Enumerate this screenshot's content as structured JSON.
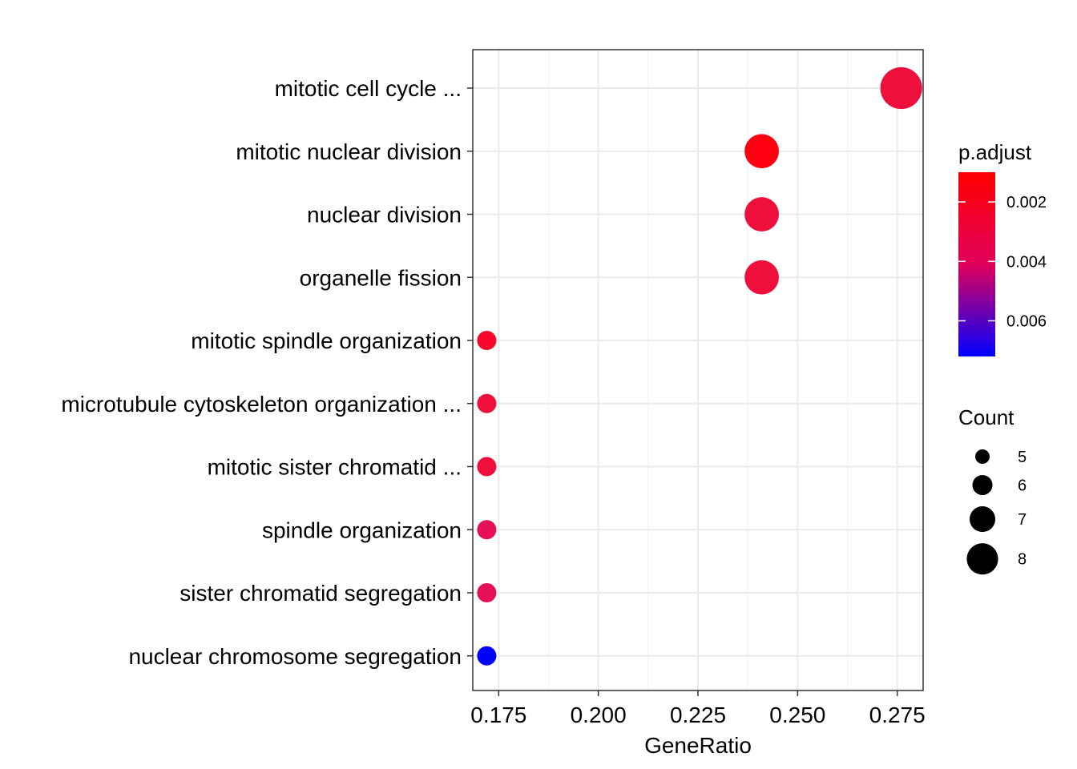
{
  "chart_data": {
    "type": "scatter",
    "title": "",
    "xlabel": "GeneRatio",
    "ylabel": "",
    "xlim": [
      0.1685,
      0.2815
    ],
    "x_ticks": [
      {
        "value": 0.175,
        "label": "0.175"
      },
      {
        "value": 0.2,
        "label": "0.200"
      },
      {
        "value": 0.225,
        "label": "0.225"
      },
      {
        "value": 0.25,
        "label": "0.250"
      },
      {
        "value": 0.275,
        "label": "0.275"
      }
    ],
    "grid": true,
    "legend_position": "right",
    "points": [
      {
        "term": "mitotic cell cycle ...",
        "gene_ratio": 0.276,
        "count": 8,
        "p_adjust": 0.0024,
        "color": "#EE0F3C"
      },
      {
        "term": "mitotic nuclear division",
        "gene_ratio": 0.241,
        "count": 7,
        "p_adjust": 0.0012,
        "color": "#FF0010"
      },
      {
        "term": "nuclear division",
        "gene_ratio": 0.241,
        "count": 7,
        "p_adjust": 0.0024,
        "color": "#EE0F3C"
      },
      {
        "term": "organelle fission",
        "gene_ratio": 0.241,
        "count": 7,
        "p_adjust": 0.0024,
        "color": "#EE0F3C"
      },
      {
        "term": "mitotic spindle organization",
        "gene_ratio": 0.172,
        "count": 5,
        "p_adjust": 0.0016,
        "color": "#F8052B"
      },
      {
        "term": "microtubule cytoskeleton organization ...",
        "gene_ratio": 0.172,
        "count": 5,
        "p_adjust": 0.0024,
        "color": "#EE0F3C"
      },
      {
        "term": "mitotic sister chromatid ...",
        "gene_ratio": 0.172,
        "count": 5,
        "p_adjust": 0.0024,
        "color": "#EE0F3C"
      },
      {
        "term": "spindle organization",
        "gene_ratio": 0.172,
        "count": 5,
        "p_adjust": 0.0029,
        "color": "#E51055"
      },
      {
        "term": "sister chromatid segregation",
        "gene_ratio": 0.172,
        "count": 5,
        "p_adjust": 0.0029,
        "color": "#E51055"
      },
      {
        "term": "nuclear chromosome segregation",
        "gene_ratio": 0.172,
        "count": 5,
        "p_adjust": 0.0072,
        "color": "#0000FF"
      }
    ],
    "color_legend": {
      "title": "p.adjust",
      "top_color": "#FF0000",
      "bottom_color": "#0000FF",
      "range": [
        0.001,
        0.0072
      ],
      "ticks": [
        {
          "value": 0.002,
          "label": "0.002"
        },
        {
          "value": 0.004,
          "label": "0.004"
        },
        {
          "value": 0.006,
          "label": "0.006"
        }
      ]
    },
    "size_legend": {
      "title": "Count",
      "entries": [
        {
          "value": 5,
          "label": "5"
        },
        {
          "value": 6,
          "label": "6"
        },
        {
          "value": 7,
          "label": "7"
        },
        {
          "value": 8,
          "label": "8"
        }
      ]
    }
  }
}
